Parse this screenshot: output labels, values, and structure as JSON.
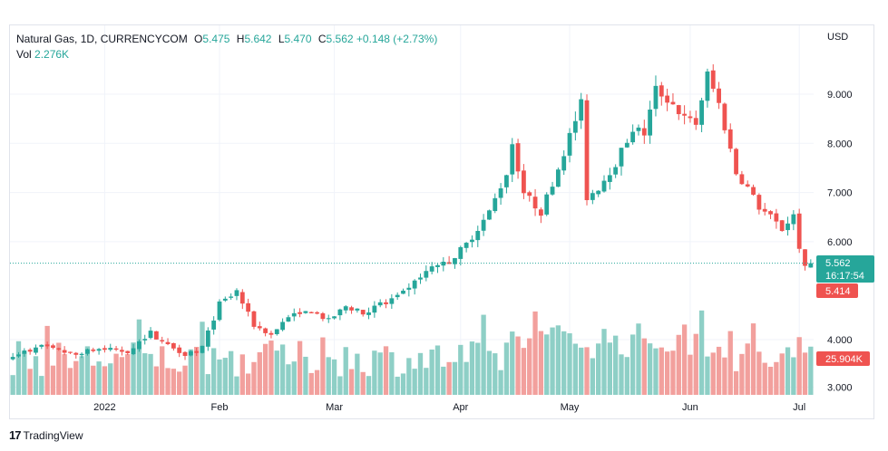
{
  "header": {
    "symbol": "Natural Gas, 1D, CURRENCYCOM",
    "open_label": "O",
    "open": "5.475",
    "high_label": "H",
    "high": "5.642",
    "low_label": "L",
    "low": "5.470",
    "close_label": "C",
    "close": "5.562",
    "change": "+0.148 (+2.73%)",
    "vol_label": "Vol",
    "vol": "2.276K"
  },
  "price_axis": {
    "currency": "USD",
    "ticks": [
      "9.000",
      "8.000",
      "7.000",
      "6.000",
      "4.000",
      "3.000"
    ]
  },
  "time_axis": {
    "labels": [
      "2022",
      "Feb",
      "Mar",
      "Apr",
      "May",
      "Jun",
      "Jul"
    ]
  },
  "tags": {
    "last_price": "5.562",
    "countdown": "16:17:54",
    "previous_close": "5.414",
    "volume_ma": "25.904K"
  },
  "branding": {
    "name": "TradingView"
  },
  "colors": {
    "up": "#26a69a",
    "down": "#ef5350",
    "vol_up": "#8ecfc6",
    "vol_down": "#f2a09d",
    "axis_text": "#131722"
  },
  "chart_data": {
    "type": "candlestick",
    "ylim": [
      2.9,
      9.8
    ],
    "price_ticks": [
      3,
      4,
      6,
      7,
      8,
      9
    ],
    "x_labels": [
      {
        "label": "2022",
        "index": 16
      },
      {
        "label": "Feb",
        "index": 36
      },
      {
        "label": "Mar",
        "index": 56
      },
      {
        "label": "Apr",
        "index": 78
      },
      {
        "label": "May",
        "index": 97
      },
      {
        "label": "Jun",
        "index": 118
      },
      {
        "label": "Jul",
        "index": 137
      }
    ],
    "n_total": 140,
    "anchors": [
      [
        0,
        3.68
      ],
      [
        5,
        3.85
      ],
      [
        10,
        3.7
      ],
      [
        15,
        3.8
      ],
      [
        20,
        3.75
      ],
      [
        24,
        4.15
      ],
      [
        26,
        3.95
      ],
      [
        30,
        3.7
      ],
      [
        33,
        3.85
      ],
      [
        36,
        4.75
      ],
      [
        39,
        5.0
      ],
      [
        42,
        4.3
      ],
      [
        45,
        4.1
      ],
      [
        48,
        4.5
      ],
      [
        52,
        4.6
      ],
      [
        55,
        4.4
      ],
      [
        58,
        4.7
      ],
      [
        61,
        4.55
      ],
      [
        64,
        4.75
      ],
      [
        68,
        4.95
      ],
      [
        72,
        5.4
      ],
      [
        76,
        5.6
      ],
      [
        79,
        5.95
      ],
      [
        83,
        6.6
      ],
      [
        86,
        7.4
      ],
      [
        87,
        8.0
      ],
      [
        89,
        7.0
      ],
      [
        92,
        6.6
      ],
      [
        95,
        7.5
      ],
      [
        99,
        8.8
      ],
      [
        100,
        6.9
      ],
      [
        102,
        7.1
      ],
      [
        105,
        7.6
      ],
      [
        108,
        8.3
      ],
      [
        110,
        8.2
      ],
      [
        112,
        9.1
      ],
      [
        115,
        8.8
      ],
      [
        117,
        8.5
      ],
      [
        119,
        8.4
      ],
      [
        121,
        9.4
      ],
      [
        123,
        8.8
      ],
      [
        126,
        7.4
      ],
      [
        128,
        7.1
      ],
      [
        130,
        6.7
      ],
      [
        132,
        6.5
      ],
      [
        134,
        6.25
      ],
      [
        136,
        6.55
      ],
      [
        137,
        5.9
      ],
      [
        138,
        5.45
      ],
      [
        139,
        5.56
      ]
    ],
    "last": {
      "open": 5.475,
      "high": 5.642,
      "low": 5.47,
      "close": 5.562
    },
    "volume_ma": 25.904,
    "volume_unit": "K"
  }
}
